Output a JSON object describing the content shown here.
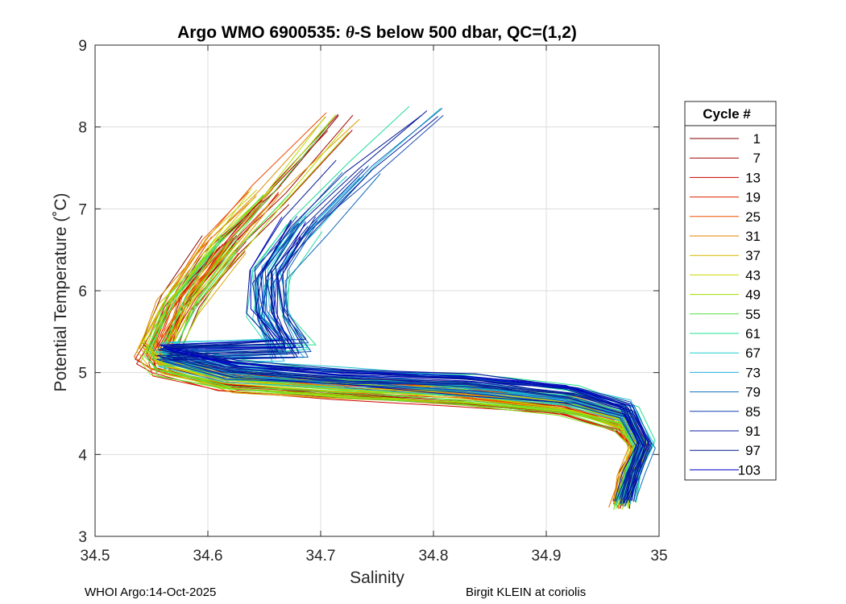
{
  "chart_data": {
    "type": "line",
    "title_prefix": "Argo WMO 6900535: ",
    "title_theta": "θ",
    "title_suffix": "-S below 500 dbar,  QC=(1,2)",
    "xlabel": "Salinity",
    "ylabel": "Potential Temperature (˚C)",
    "xlim": [
      34.5,
      35
    ],
    "ylim": [
      3,
      9
    ],
    "xticks": [
      "34.5",
      "34.6",
      "34.7",
      "34.8",
      "34.9",
      "35"
    ],
    "yticks": [
      "3",
      "4",
      "5",
      "6",
      "7",
      "8",
      "9"
    ],
    "grid": true,
    "legend": {
      "title": "Cycle #",
      "placement": "right",
      "entries": [
        "1",
        "7",
        "13",
        "19",
        "25",
        "31",
        "37",
        "43",
        "49",
        "55",
        "61",
        "67",
        "73",
        "79",
        "85",
        "91",
        "97",
        "103"
      ],
      "colors": [
        "#7f0000",
        "#a00000",
        "#c80000",
        "#e02000",
        "#f05000",
        "#e08000",
        "#d8b800",
        "#c8d800",
        "#a0e000",
        "#50e040",
        "#20e090",
        "#20d0d0",
        "#20b0e0",
        "#1070c0",
        "#1040b0",
        "#1020a0",
        "#001890",
        "#0000c8"
      ]
    },
    "series_shape": {
      "cycles": 103,
      "points": [
        [
          34.55,
          5.45
        ],
        [
          34.56,
          5.15
        ],
        [
          34.62,
          4.95
        ],
        [
          34.72,
          4.85
        ],
        [
          34.83,
          4.78
        ],
        [
          34.92,
          4.65
        ],
        [
          34.97,
          4.45
        ],
        [
          34.985,
          4.1
        ],
        [
          34.975,
          3.75
        ],
        [
          34.968,
          3.4
        ]
      ]
    },
    "upper_branch": {
      "early": {
        "cycles_upto": 60,
        "points": [
          [
            34.56,
            5.3
          ],
          [
            34.58,
            5.9
          ],
          [
            34.62,
            6.6
          ],
          [
            34.66,
            7.2
          ],
          [
            34.72,
            8.1
          ]
        ]
      },
      "late": {
        "cycles_from": 61,
        "points": [
          [
            34.67,
            5.2
          ],
          [
            34.65,
            5.6
          ],
          [
            34.65,
            6.1
          ],
          [
            34.68,
            6.7
          ],
          [
            34.73,
            7.4
          ],
          [
            34.79,
            8.1
          ]
        ]
      }
    }
  },
  "footer": {
    "left": "WHOI Argo:14-Oct-2025",
    "right": "Birgit KLEIN at coriolis"
  }
}
